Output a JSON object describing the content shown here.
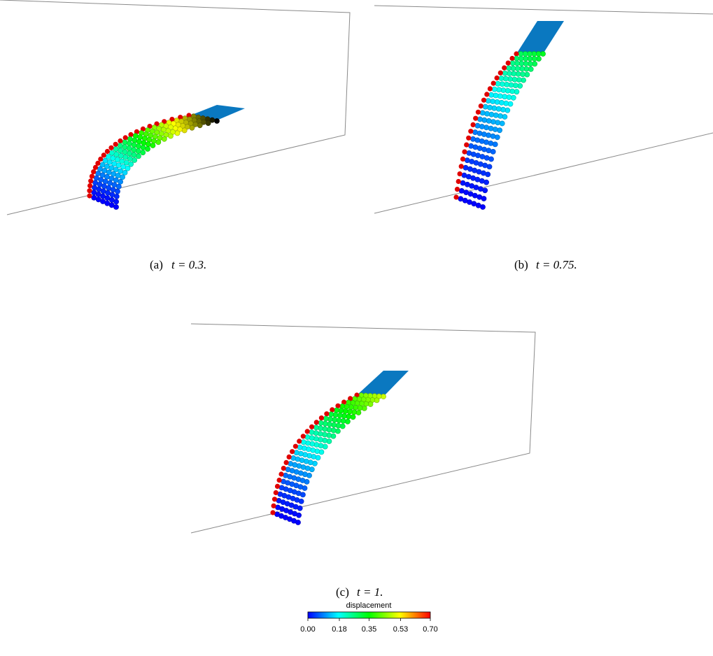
{
  "panels": [
    {
      "label": "(a)",
      "caption": "t = 0.3."
    },
    {
      "label": "(b)",
      "caption": "t = 0.75."
    },
    {
      "label": "(c)",
      "caption": "t = 1."
    }
  ],
  "colorbar": {
    "title": "displacement",
    "lim": [
      0,
      0.7
    ],
    "ticks": [
      {
        "value": 0,
        "label": "0.00"
      },
      {
        "value": 0.18,
        "label": "0.18"
      },
      {
        "value": 0.35,
        "label": "0.35"
      },
      {
        "value": 0.53,
        "label": "0.53"
      },
      {
        "value": 0.7,
        "label": "0.70"
      }
    ]
  }
}
